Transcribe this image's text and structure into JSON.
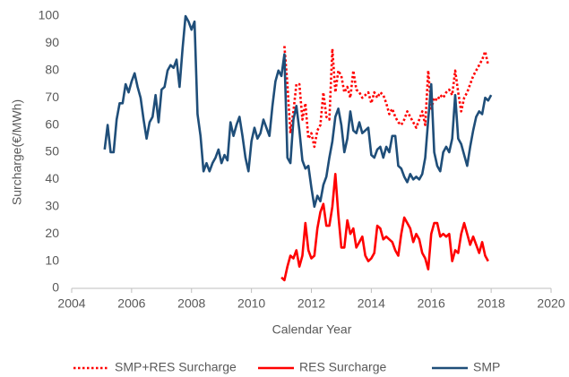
{
  "chart_data": {
    "type": "line",
    "xlabel": "Calendar Year",
    "ylabel": "Surcharge(€/MWh)",
    "xlim": [
      2004,
      2020
    ],
    "xticks": [
      2004,
      2006,
      2008,
      2010,
      2012,
      2014,
      2016,
      2018,
      2020
    ],
    "ylim": [
      0,
      100
    ],
    "yticks": [
      0,
      10,
      20,
      30,
      40,
      50,
      60,
      70,
      80,
      90,
      100
    ],
    "grid": false,
    "legend": "bottom",
    "series": [
      {
        "name": "SMP+RES Surcharge",
        "color": "#ff0000",
        "dash": "dotted",
        "x": [
          2011.1,
          2011.2,
          2011.3,
          2011.4,
          2011.5,
          2011.6,
          2011.7,
          2011.8,
          2011.9,
          2012.0,
          2012.1,
          2012.2,
          2012.3,
          2012.4,
          2012.5,
          2012.6,
          2012.7,
          2012.8,
          2012.9,
          2013.0,
          2013.1,
          2013.2,
          2013.3,
          2013.4,
          2013.5,
          2013.6,
          2013.7,
          2013.8,
          2013.9,
          2014.0,
          2014.1,
          2014.2,
          2014.3,
          2014.4,
          2014.5,
          2014.6,
          2014.7,
          2014.8,
          2014.9,
          2015.0,
          2015.1,
          2015.2,
          2015.3,
          2015.4,
          2015.5,
          2015.6,
          2015.7,
          2015.8,
          2015.9,
          2016.0,
          2016.1,
          2016.2,
          2016.3,
          2016.4,
          2016.5,
          2016.6,
          2016.7,
          2016.8,
          2016.9,
          2017.0,
          2017.1,
          2017.2,
          2017.3,
          2017.4,
          2017.5,
          2017.6,
          2017.7,
          2017.8,
          2017.9
        ],
        "values": [
          89,
          75,
          57,
          65,
          75,
          75,
          62,
          68,
          55,
          57,
          52,
          58,
          60,
          72,
          63,
          62,
          88,
          72,
          80,
          78,
          72,
          74,
          70,
          80,
          73,
          72,
          70,
          71,
          72,
          68,
          72,
          70,
          72,
          71,
          68,
          64,
          66,
          63,
          61,
          60,
          62,
          65,
          63,
          61,
          59,
          62,
          65,
          60,
          80,
          66,
          70,
          69,
          71,
          70,
          72,
          73,
          71,
          80,
          72,
          65,
          70,
          72,
          75,
          78,
          80,
          82,
          84,
          87,
          82
        ]
      },
      {
        "name": "RES Surcharge",
        "color": "#ff0000",
        "dash": "solid",
        "x": [
          2011.0,
          2011.1,
          2011.2,
          2011.3,
          2011.4,
          2011.5,
          2011.6,
          2011.7,
          2011.8,
          2011.9,
          2012.0,
          2012.1,
          2012.2,
          2012.3,
          2012.4,
          2012.5,
          2012.6,
          2012.7,
          2012.8,
          2012.9,
          2013.0,
          2013.1,
          2013.2,
          2013.3,
          2013.4,
          2013.5,
          2013.6,
          2013.7,
          2013.8,
          2013.9,
          2014.0,
          2014.1,
          2014.2,
          2014.3,
          2014.4,
          2014.5,
          2014.6,
          2014.7,
          2014.8,
          2014.9,
          2015.0,
          2015.1,
          2015.2,
          2015.3,
          2015.4,
          2015.5,
          2015.6,
          2015.7,
          2015.8,
          2015.9,
          2016.0,
          2016.1,
          2016.2,
          2016.3,
          2016.4,
          2016.5,
          2016.6,
          2016.7,
          2016.8,
          2016.9,
          2017.0,
          2017.1,
          2017.2,
          2017.3,
          2017.4,
          2017.5,
          2017.6,
          2017.7,
          2017.8,
          2017.9
        ],
        "values": [
          4,
          3,
          8,
          12,
          11,
          14,
          8,
          12,
          24,
          14,
          11,
          12,
          22,
          28,
          31,
          23,
          23,
          30,
          42,
          27,
          15,
          15,
          25,
          20,
          22,
          15,
          17,
          19,
          12,
          10,
          11,
          13,
          23,
          22,
          18,
          19,
          18,
          17,
          14,
          12,
          20,
          26,
          24,
          22,
          17,
          20,
          18,
          13,
          11,
          7,
          20,
          24,
          24,
          19,
          20,
          19,
          20,
          10,
          14,
          13,
          20,
          24,
          20,
          16,
          19,
          16,
          13,
          17,
          12,
          10
        ]
      },
      {
        "name": "SMP",
        "color": "#1f4e79",
        "dash": "solid",
        "x": [
          2005.1,
          2005.2,
          2005.3,
          2005.4,
          2005.5,
          2005.6,
          2005.7,
          2005.8,
          2005.9,
          2006.0,
          2006.1,
          2006.2,
          2006.3,
          2006.4,
          2006.5,
          2006.6,
          2006.7,
          2006.8,
          2006.9,
          2007.0,
          2007.1,
          2007.2,
          2007.3,
          2007.4,
          2007.5,
          2007.6,
          2007.7,
          2007.8,
          2007.9,
          2008.0,
          2008.1,
          2008.2,
          2008.3,
          2008.4,
          2008.5,
          2008.6,
          2008.7,
          2008.8,
          2008.9,
          2009.0,
          2009.1,
          2009.2,
          2009.3,
          2009.4,
          2009.5,
          2009.6,
          2009.7,
          2009.8,
          2009.9,
          2010.0,
          2010.1,
          2010.2,
          2010.3,
          2010.4,
          2010.5,
          2010.6,
          2010.7,
          2010.8,
          2010.9,
          2011.0,
          2011.1,
          2011.2,
          2011.3,
          2011.4,
          2011.5,
          2011.6,
          2011.7,
          2011.8,
          2011.9,
          2012.0,
          2012.1,
          2012.2,
          2012.3,
          2012.4,
          2012.5,
          2012.6,
          2012.7,
          2012.8,
          2012.9,
          2013.0,
          2013.1,
          2013.2,
          2013.3,
          2013.4,
          2013.5,
          2013.6,
          2013.7,
          2013.8,
          2013.9,
          2014.0,
          2014.1,
          2014.2,
          2014.3,
          2014.4,
          2014.5,
          2014.6,
          2014.7,
          2014.8,
          2014.9,
          2015.0,
          2015.1,
          2015.2,
          2015.3,
          2015.4,
          2015.5,
          2015.6,
          2015.7,
          2015.8,
          2015.9,
          2016.0,
          2016.1,
          2016.2,
          2016.3,
          2016.4,
          2016.5,
          2016.6,
          2016.7,
          2016.8,
          2016.9,
          2017.0,
          2017.1,
          2017.2,
          2017.3,
          2017.4,
          2017.5,
          2017.6,
          2017.7,
          2017.8,
          2017.9,
          2018.0
        ],
        "values": [
          51,
          60,
          50,
          50,
          62,
          68,
          68,
          75,
          72,
          76,
          79,
          74,
          70,
          62,
          55,
          61,
          63,
          71,
          61,
          73,
          74,
          80,
          82,
          81,
          84,
          74,
          88,
          100,
          98,
          95,
          98,
          64,
          56,
          43,
          46,
          43,
          46,
          48,
          51,
          46,
          49,
          47,
          61,
          56,
          60,
          63,
          56,
          48,
          43,
          54,
          59,
          55,
          57,
          62,
          59,
          56,
          67,
          76,
          80,
          78,
          86,
          48,
          46,
          62,
          67,
          58,
          47,
          44,
          45,
          37,
          30,
          34,
          32,
          38,
          41,
          48,
          54,
          63,
          66,
          60,
          50,
          55,
          65,
          58,
          57,
          61,
          57,
          58,
          59,
          49,
          48,
          51,
          52,
          48,
          52,
          50,
          56,
          56,
          45,
          44,
          41,
          39,
          42,
          40,
          41,
          40,
          42,
          48,
          62,
          75,
          50,
          45,
          43,
          50,
          52,
          50,
          55,
          71,
          55,
          53,
          49,
          45,
          52,
          58,
          63,
          65,
          64,
          70,
          69,
          71
        ]
      }
    ]
  }
}
